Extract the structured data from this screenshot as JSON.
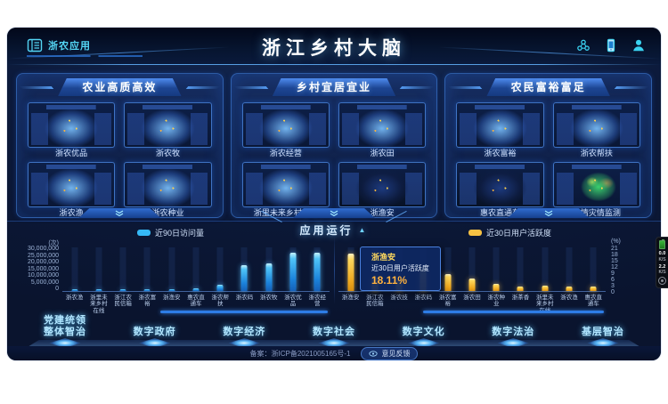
{
  "header": {
    "app_badge": "浙农应用",
    "title": "浙江乡村大脑",
    "icons": [
      "network-icon",
      "mobile-icon",
      "user-icon"
    ]
  },
  "panels": [
    {
      "title": "农业高质高效",
      "apps": [
        {
          "label": "浙农优品"
        },
        {
          "label": "浙农牧"
        },
        {
          "label": "浙农渔"
        },
        {
          "label": "浙农种业"
        }
      ]
    },
    {
      "title": "乡村宜居宜业",
      "apps": [
        {
          "label": "浙农经营"
        },
        {
          "label": "浙农田"
        },
        {
          "label": "浙里未来乡村在线"
        },
        {
          "label": "浙渔安",
          "style": "dark"
        }
      ]
    },
    {
      "title": "农民富裕富足",
      "apps": [
        {
          "label": "浙农富裕"
        },
        {
          "label": "浙农帮扶"
        },
        {
          "label": "惠农直通车",
          "style": "dark"
        },
        {
          "label": "农情灾情监测",
          "style": "risk"
        }
      ]
    }
  ],
  "app_run": {
    "title": "应用运行",
    "caret": "▲"
  },
  "chart_data": [
    {
      "type": "bar",
      "legend": "近90日访问量",
      "unit": "(次)",
      "color": "#35b9f6",
      "categories": [
        "浙农渔",
        "浙里未来乡村在线",
        "浙江农民信箱",
        "浙农富裕",
        "浙渔安",
        "惠农直通车",
        "浙农帮扶",
        "浙农码",
        "浙农牧",
        "浙农优品",
        "浙农经营"
      ],
      "values": [
        1200000,
        1100000,
        1300000,
        1100000,
        1200000,
        1800000,
        4500000,
        17500000,
        19000000,
        26500000,
        26500000
      ],
      "ylim": [
        0,
        30000000
      ],
      "yticks": [
        "30,000,000",
        "25,000,000",
        "20,000,000",
        "15,000,000",
        "10,000,000",
        "5,000,000",
        "0"
      ],
      "axis_side": "left",
      "legend_position": "top-left",
      "grid": false
    },
    {
      "type": "bar",
      "legend": "近30日用户活跃度",
      "unit": "(%)",
      "color": "#f6c143",
      "categories": [
        "浙渔安",
        "浙江农民信箱",
        "浙农技",
        "浙农码",
        "浙农富裕",
        "浙农田",
        "浙农种业",
        "浙茶香",
        "浙里未来乡村在线",
        "浙农渔",
        "惠农直通车"
      ],
      "values": [
        18.11,
        6.5,
        5.2,
        11.6,
        8.2,
        6.1,
        3.4,
        2.1,
        2.6,
        2.2,
        2.3
      ],
      "ylim": [
        0,
        21
      ],
      "yticks": [
        "21",
        "18",
        "15",
        "12",
        "9",
        "6",
        "3",
        "0"
      ],
      "axis_side": "right",
      "legend_position": "top-right",
      "grid": false,
      "tooltip": {
        "title": "浙渔安",
        "label": "近30日用户活跃度",
        "value": "18.11%"
      }
    }
  ],
  "bottom_nav": [
    {
      "label": "党建统领\n整体智治"
    },
    {
      "label": "数字政府"
    },
    {
      "label": "数字经济"
    },
    {
      "label": "数字社会"
    },
    {
      "label": "数字文化"
    },
    {
      "label": "数字法治"
    },
    {
      "label": "基层智治"
    }
  ],
  "footer": {
    "icp": "备案：浙ICP备2021005165号-1",
    "feedback": "意见反馈"
  },
  "overlay": {
    "up_value": "0.0",
    "up_unit": "K/S",
    "down_value": "2.2",
    "down_unit": "K/S"
  }
}
